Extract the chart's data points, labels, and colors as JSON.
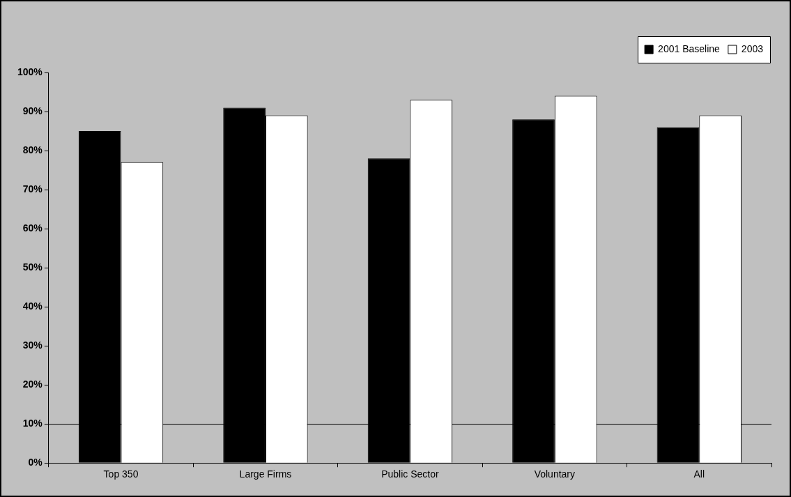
{
  "chart_data": {
    "type": "bar",
    "categories": [
      "Top 350",
      "Large Firms",
      "Public Sector",
      "Voluntary",
      "All"
    ],
    "series": [
      {
        "name": "2001 Baseline",
        "color": "#000000",
        "values": [
          85,
          91,
          78,
          88,
          86
        ]
      },
      {
        "name": "2003",
        "color": "#ffffff",
        "values": [
          77,
          89,
          93,
          94,
          89
        ]
      }
    ],
    "ylim": [
      0,
      100
    ],
    "yticks": [
      {
        "value": 0,
        "label": "0%"
      },
      {
        "value": 10,
        "label": "10%"
      },
      {
        "value": 20,
        "label": "20%"
      },
      {
        "value": 30,
        "label": "30%"
      },
      {
        "value": 40,
        "label": "40%"
      },
      {
        "value": 50,
        "label": "50%"
      },
      {
        "value": 60,
        "label": "60%"
      },
      {
        "value": 70,
        "label": "70%"
      },
      {
        "value": 80,
        "label": "80%"
      },
      {
        "value": 90,
        "label": "90%"
      },
      {
        "value": 100,
        "label": "100%"
      }
    ],
    "ref_lines": [
      {
        "axis": "y",
        "value": 10,
        "color": "#000000"
      }
    ],
    "grid": false,
    "legend": "top right"
  }
}
